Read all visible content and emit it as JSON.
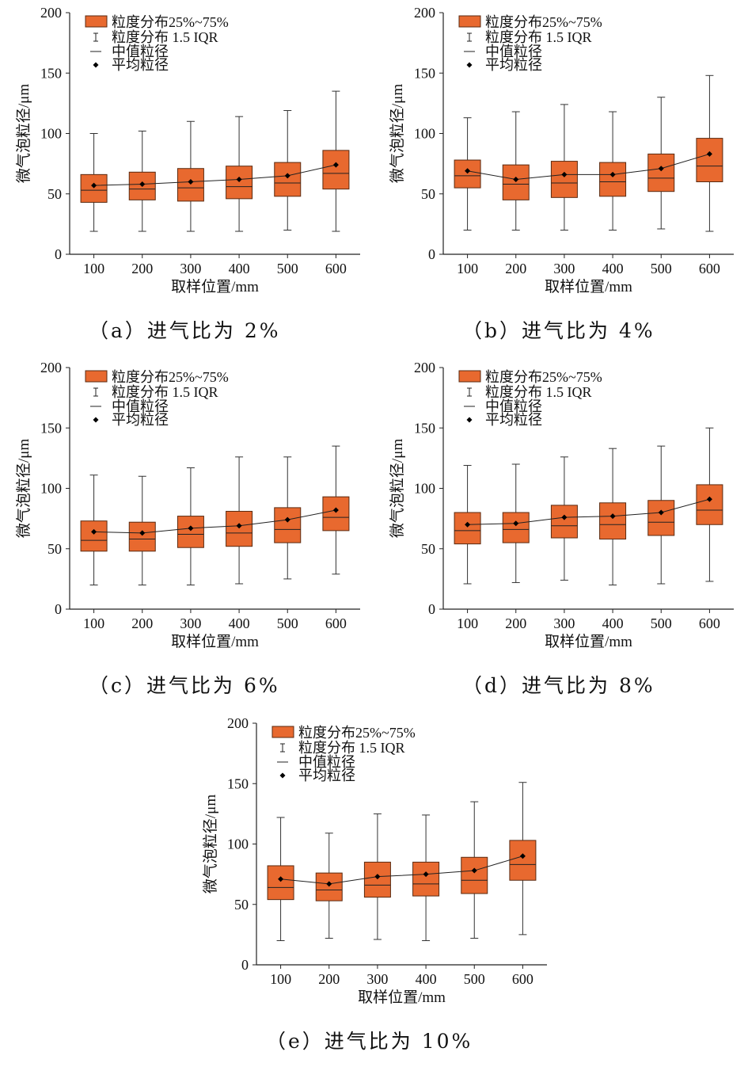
{
  "colors": {
    "box": "#e8692f",
    "box_edge": "#5a2a10",
    "line": "#333333"
  },
  "legend": {
    "box_label": "粒度分布25%~75%",
    "whisker_label": "粒度分布 1.5 IQR",
    "median_label": "中值粒径",
    "mean_label": "平均粒径"
  },
  "chart_data": [
    {
      "type": "box",
      "caption": "（a）进气比为 2%",
      "xlabel": "取样位置/mm",
      "ylabel": "微气泡粒径/μm",
      "ylim": [
        0,
        200
      ],
      "yticks": [
        0,
        50,
        100,
        150,
        200
      ],
      "categories": [
        "100",
        "200",
        "300",
        "400",
        "500",
        "600"
      ],
      "whisker_low": [
        19,
        19,
        19,
        19,
        20,
        19
      ],
      "q1": [
        43,
        45,
        44,
        46,
        48,
        54
      ],
      "median": [
        53,
        54,
        55,
        56,
        59,
        67
      ],
      "q3": [
        66,
        68,
        71,
        73,
        76,
        86
      ],
      "whisker_high": [
        100,
        102,
        110,
        114,
        119,
        135
      ],
      "mean": [
        57,
        58,
        60,
        62,
        65,
        74
      ]
    },
    {
      "type": "box",
      "caption": "（b）进气比为 4%",
      "xlabel": "取样位置/mm",
      "ylabel": "微气泡粒径/μm",
      "ylim": [
        0,
        200
      ],
      "yticks": [
        0,
        50,
        100,
        150,
        200
      ],
      "categories": [
        "100",
        "200",
        "300",
        "400",
        "500",
        "600"
      ],
      "whisker_low": [
        20,
        20,
        20,
        20,
        21,
        19
      ],
      "q1": [
        55,
        45,
        47,
        48,
        52,
        60
      ],
      "median": [
        65,
        58,
        59,
        60,
        63,
        73
      ],
      "q3": [
        78,
        74,
        77,
        76,
        83,
        96
      ],
      "whisker_high": [
        113,
        118,
        124,
        118,
        130,
        148
      ],
      "mean": [
        69,
        62,
        66,
        66,
        71,
        83
      ]
    },
    {
      "type": "box",
      "caption": "（c）进气比为 6%",
      "xlabel": "取样位置/mm",
      "ylabel": "微气泡粒径/μm",
      "ylim": [
        0,
        200
      ],
      "yticks": [
        0,
        50,
        100,
        150,
        200
      ],
      "categories": [
        "100",
        "200",
        "300",
        "400",
        "500",
        "600"
      ],
      "whisker_low": [
        20,
        20,
        20,
        21,
        25,
        29
      ],
      "q1": [
        48,
        48,
        51,
        52,
        55,
        65
      ],
      "median": [
        57,
        58,
        62,
        63,
        66,
        76
      ],
      "q3": [
        73,
        72,
        77,
        81,
        84,
        93
      ],
      "whisker_high": [
        111,
        110,
        117,
        126,
        126,
        135
      ],
      "mean": [
        64,
        63,
        67,
        69,
        74,
        82
      ]
    },
    {
      "type": "box",
      "caption": "（d）进气比为 8%",
      "xlabel": "取样位置/mm",
      "ylabel": "微气泡粒径/μm",
      "ylim": [
        0,
        200
      ],
      "yticks": [
        0,
        50,
        100,
        150,
        200
      ],
      "categories": [
        "100",
        "200",
        "300",
        "400",
        "500",
        "600"
      ],
      "whisker_low": [
        21,
        22,
        24,
        20,
        21,
        23
      ],
      "q1": [
        54,
        55,
        59,
        58,
        61,
        70
      ],
      "median": [
        65,
        66,
        69,
        70,
        72,
        82
      ],
      "q3": [
        80,
        80,
        86,
        88,
        90,
        103
      ],
      "whisker_high": [
        119,
        120,
        126,
        133,
        135,
        150
      ],
      "mean": [
        70,
        71,
        76,
        77,
        80,
        91
      ]
    },
    {
      "type": "box",
      "caption": "（e）进气比为 10%",
      "xlabel": "取样位置/mm",
      "ylabel": "微气泡粒径/μm",
      "ylim": [
        0,
        200
      ],
      "yticks": [
        0,
        50,
        100,
        150,
        200
      ],
      "categories": [
        "100",
        "200",
        "300",
        "400",
        "500",
        "600"
      ],
      "whisker_low": [
        20,
        22,
        21,
        20,
        22,
        25
      ],
      "q1": [
        54,
        53,
        56,
        57,
        59,
        70
      ],
      "median": [
        64,
        62,
        66,
        67,
        70,
        83
      ],
      "q3": [
        82,
        76,
        85,
        85,
        89,
        103
      ],
      "whisker_high": [
        122,
        109,
        125,
        124,
        135,
        151
      ],
      "mean": [
        71,
        67,
        73,
        75,
        78,
        90
      ]
    }
  ]
}
